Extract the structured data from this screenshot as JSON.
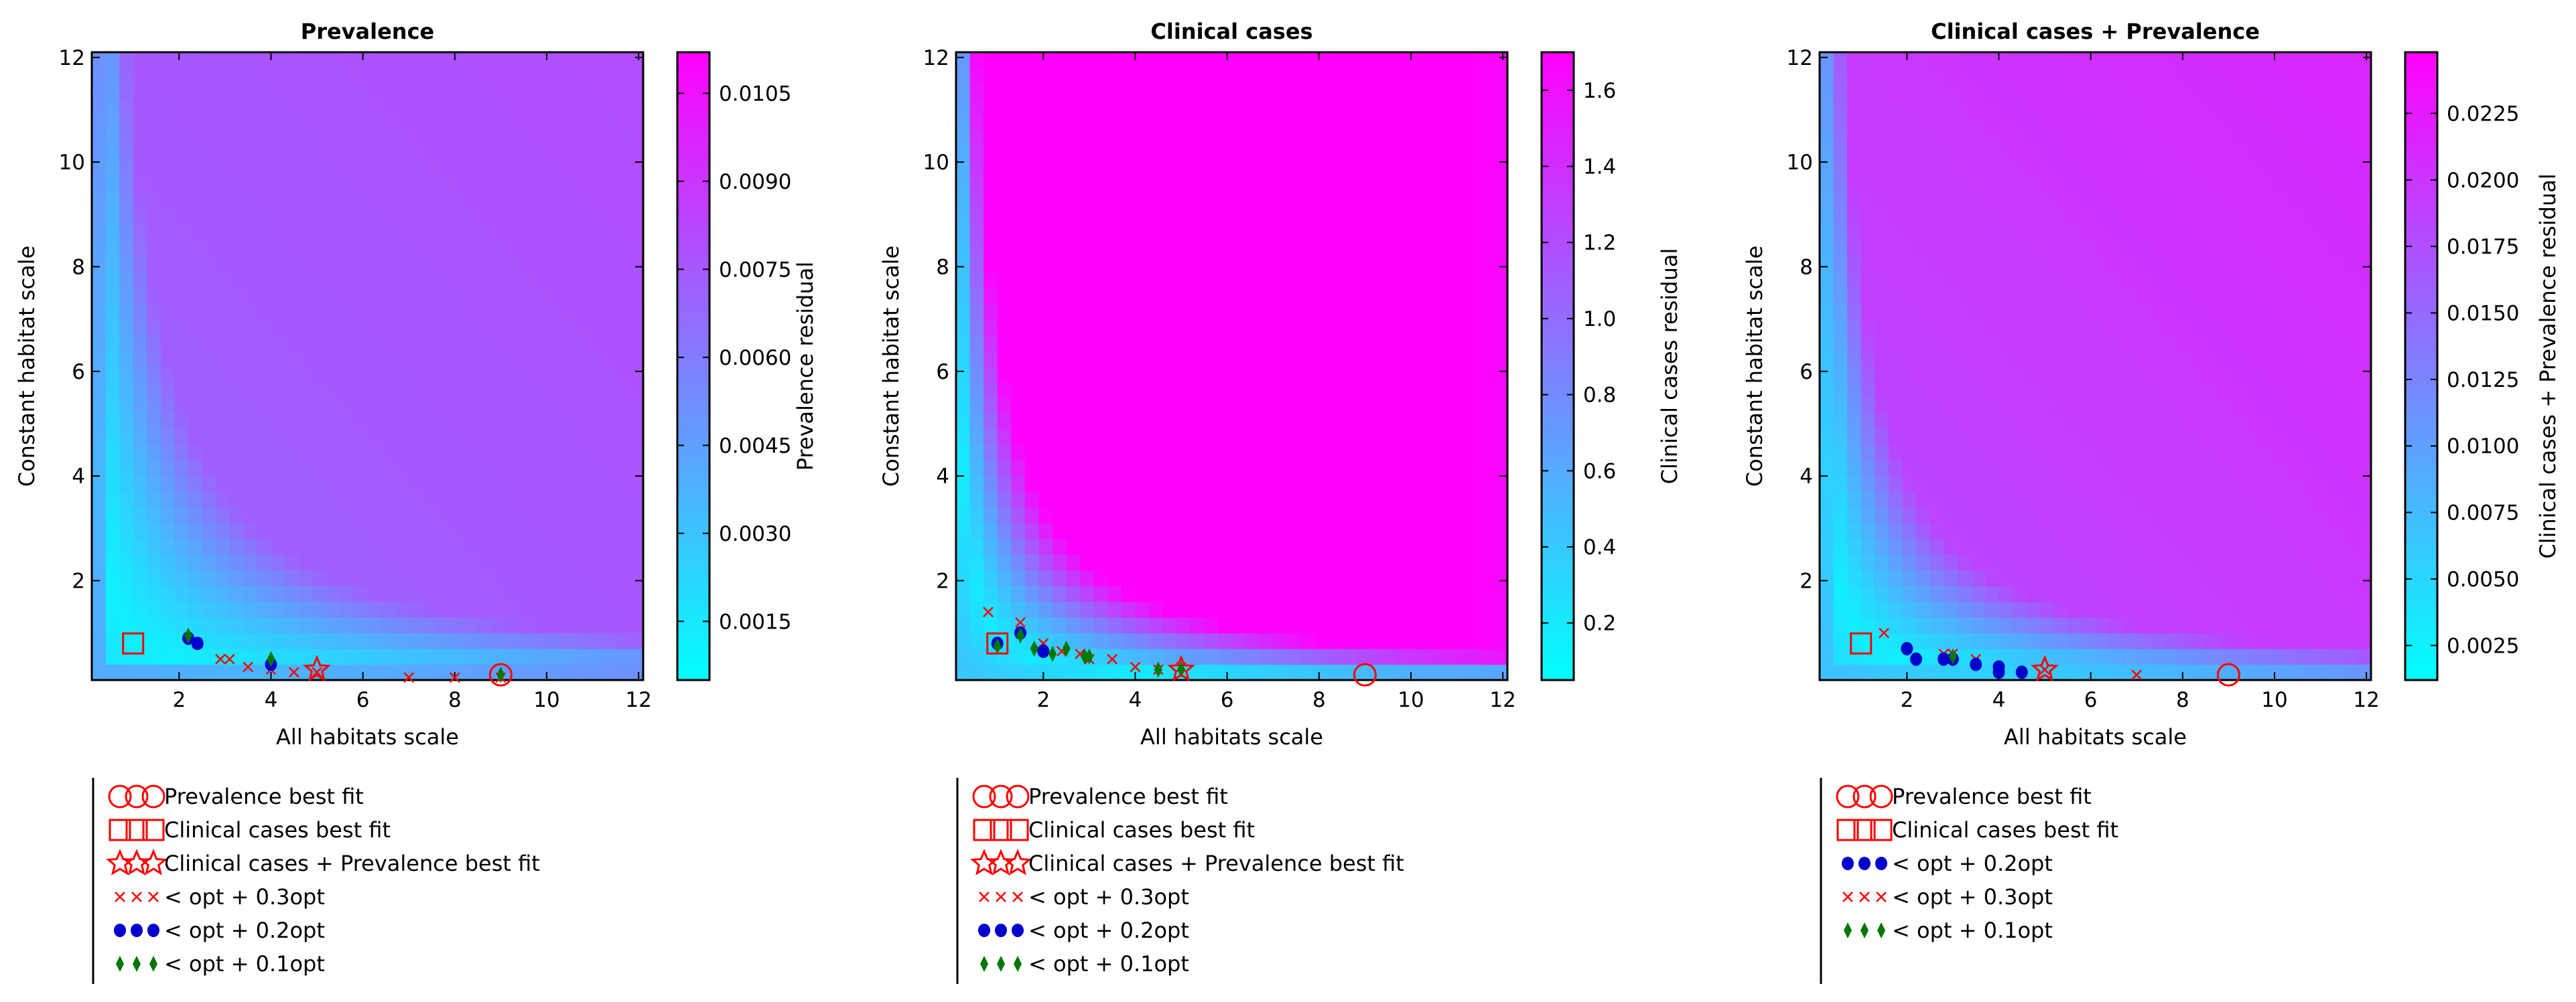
{
  "figure": {
    "legend_text": {
      "prevalence": "Prevalence best fit",
      "clinical": "Clinical cases best fit",
      "combined": "Clinical cases + Prevalence best fit",
      "opt03": "< opt + 0.3opt",
      "opt02": "< opt + 0.2opt",
      "opt01": "< opt + 0.1opt"
    },
    "colors": {
      "cmap_low": "#00ffff",
      "cmap_high": "#ff00ff",
      "best_fit_marker": "#ff0000",
      "opt03_marker": "#ff0000",
      "opt02_marker": "#0000cc",
      "opt01_marker": "#007700"
    }
  },
  "chart_data": [
    {
      "type": "heatmap",
      "title": "Prevalence",
      "xlabel": "All habitats scale",
      "ylabel": "Constant habitat scale",
      "xlim": [
        0.1,
        12.1
      ],
      "ylim": [
        0.1,
        12.1
      ],
      "xticks": [
        "2",
        "4",
        "6",
        "8",
        "10",
        "12"
      ],
      "yticks": [
        "2",
        "4",
        "6",
        "8",
        "10",
        "12"
      ],
      "colorbar": {
        "label": "Prevalence residual",
        "range": [
          0.0005,
          0.0112
        ],
        "ticks": [
          "0.0015",
          "0.0030",
          "0.0045",
          "0.0060",
          "0.0075",
          "0.0090",
          "0.0105"
        ]
      },
      "best_fits": {
        "prevalence": [
          9.0,
          0.2
        ],
        "clinical": [
          1.0,
          0.8
        ],
        "combined": [
          5.0,
          0.3
        ]
      },
      "opt03": [
        [
          2.4,
          0.8
        ],
        [
          2.9,
          0.5
        ],
        [
          3.1,
          0.5
        ],
        [
          3.5,
          0.35
        ],
        [
          4.0,
          0.3
        ],
        [
          4.5,
          0.25
        ],
        [
          5.0,
          0.25
        ],
        [
          7.0,
          0.15
        ],
        [
          8.0,
          0.15
        ],
        [
          9.0,
          0.15
        ]
      ],
      "opt02": [
        [
          2.2,
          0.9
        ],
        [
          2.4,
          0.8
        ],
        [
          4.0,
          0.4
        ]
      ],
      "opt01": [
        [
          2.2,
          0.95
        ],
        [
          4.0,
          0.5
        ],
        [
          9.0,
          0.2
        ]
      ],
      "legend_order": [
        "prevalence",
        "clinical",
        "combined",
        "opt03",
        "opt02",
        "opt01"
      ]
    },
    {
      "type": "heatmap",
      "title": "Clinical cases",
      "xlabel": "All habitats scale",
      "ylabel": "Constant habitat scale",
      "xlim": [
        0.1,
        12.1
      ],
      "ylim": [
        0.1,
        12.1
      ],
      "xticks": [
        "2",
        "4",
        "6",
        "8",
        "10",
        "12"
      ],
      "yticks": [
        "2",
        "4",
        "6",
        "8",
        "10",
        "12"
      ],
      "colorbar": {
        "label": "Clinical cases residual",
        "range": [
          0.05,
          1.7
        ],
        "ticks": [
          "0.2",
          "0.4",
          "0.6",
          "0.8",
          "1.0",
          "1.2",
          "1.4",
          "1.6"
        ]
      },
      "best_fits": {
        "prevalence": [
          9.0,
          0.2
        ],
        "clinical": [
          1.0,
          0.8
        ],
        "combined": [
          5.0,
          0.3
        ]
      },
      "opt03": [
        [
          0.8,
          1.4
        ],
        [
          1.5,
          1.2
        ],
        [
          1.9,
          0.7
        ],
        [
          2.0,
          0.8
        ],
        [
          2.4,
          0.65
        ],
        [
          2.8,
          0.6
        ],
        [
          3.0,
          0.5
        ],
        [
          3.5,
          0.5
        ],
        [
          4.0,
          0.35
        ],
        [
          4.5,
          0.3
        ],
        [
          5.0,
          0.35
        ]
      ],
      "opt02": [
        [
          1.0,
          0.8
        ],
        [
          1.5,
          1.0
        ],
        [
          2.0,
          0.65
        ]
      ],
      "opt01": [
        [
          1.0,
          0.75
        ],
        [
          1.5,
          0.95
        ],
        [
          1.8,
          0.7
        ],
        [
          2.2,
          0.6
        ],
        [
          2.5,
          0.7
        ],
        [
          2.9,
          0.55
        ],
        [
          3.0,
          0.55
        ],
        [
          4.5,
          0.3
        ],
        [
          5.0,
          0.3
        ]
      ],
      "legend_order": [
        "prevalence",
        "clinical",
        "combined",
        "opt03",
        "opt02",
        "opt01"
      ]
    },
    {
      "type": "heatmap",
      "title": "Clinical cases + Prevalence",
      "xlabel": "All habitats scale",
      "ylabel": "Constant habitat scale",
      "xlim": [
        0.1,
        12.1
      ],
      "ylim": [
        0.1,
        12.1
      ],
      "xticks": [
        "2",
        "4",
        "6",
        "8",
        "10",
        "12"
      ],
      "yticks": [
        "2",
        "4",
        "6",
        "8",
        "10",
        "12"
      ],
      "colorbar": {
        "label": "Clinical cases + Prevalence residual",
        "range": [
          0.0012,
          0.0248
        ],
        "ticks": [
          "0.0025",
          "0.0050",
          "0.0075",
          "0.0100",
          "0.0125",
          "0.0150",
          "0.0175",
          "0.0200",
          "0.0225"
        ]
      },
      "best_fits": {
        "prevalence": [
          9.0,
          0.2
        ],
        "clinical": [
          1.0,
          0.8
        ],
        "combined": [
          5.0,
          0.3
        ]
      },
      "opt03": [
        [
          1.5,
          1.0
        ],
        [
          2.8,
          0.6
        ],
        [
          3.0,
          0.6
        ],
        [
          3.5,
          0.5
        ],
        [
          5.0,
          0.3
        ],
        [
          7.0,
          0.2
        ]
      ],
      "opt02": [
        [
          2.0,
          0.7
        ],
        [
          2.2,
          0.5
        ],
        [
          2.8,
          0.5
        ],
        [
          3.0,
          0.5
        ],
        [
          3.5,
          0.4
        ],
        [
          4.0,
          0.35
        ],
        [
          4.0,
          0.25
        ],
        [
          4.5,
          0.25
        ]
      ],
      "opt01": [
        [
          3.0,
          0.55
        ]
      ],
      "legend_order": [
        "prevalence",
        "clinical",
        "opt02",
        "opt03",
        "opt01"
      ]
    }
  ]
}
